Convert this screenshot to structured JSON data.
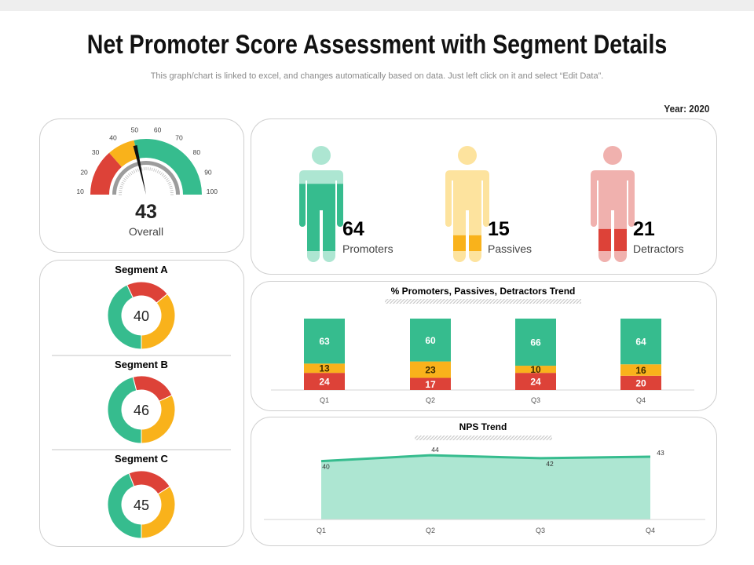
{
  "header": {
    "title": "Net Promoter Score Assessment with Segment Details",
    "subtitle": "This graph/chart is linked to excel, and changes automatically based on data. Just left click on it and select “Edit Data”.",
    "year": "Year: 2020"
  },
  "colors": {
    "green": "#36bc8e",
    "green_light": "#ade6d2",
    "yellow": "#f9b21b",
    "yellow_light": "#fde39e",
    "red": "#dd4238",
    "red_light": "#f0b1ae",
    "gray": "#9c9c9c"
  },
  "gauge": {
    "value": 43,
    "value_text": "43",
    "label": "Overall",
    "scale_labels": [
      "10",
      "20",
      "30",
      "40",
      "50",
      "60",
      "70",
      "80",
      "90",
      "100"
    ],
    "bands": {
      "red_end": 27,
      "yellow_end": 43
    }
  },
  "segments": [
    {
      "title": "Segment A",
      "value": "40",
      "shares": {
        "promoters": 0.43,
        "detractors": 0.21,
        "passives": 0.36
      }
    },
    {
      "title": "Segment B",
      "value": "46",
      "shares": {
        "promoters": 0.46,
        "detractors": 0.22,
        "passives": 0.32
      }
    },
    {
      "title": "Segment C",
      "value": "45",
      "shares": {
        "promoters": 0.44,
        "detractors": 0.22,
        "passives": 0.34
      }
    }
  ],
  "people": [
    {
      "value": "64",
      "label": "Promoters",
      "fill": 64,
      "color": "green"
    },
    {
      "value": "15",
      "label": "Passives",
      "fill": 15,
      "color": "yellow"
    },
    {
      "value": "21",
      "label": "Detractors",
      "fill": 21,
      "color": "red"
    }
  ],
  "chart_data": [
    {
      "type": "bar",
      "stacked": true,
      "title": "% Promoters, Passives, Detractors Trend",
      "categories": [
        "Q1",
        "Q2",
        "Q3",
        "Q4"
      ],
      "series": [
        {
          "key": "detractors",
          "values": [
            24,
            17,
            24,
            20
          ]
        },
        {
          "key": "passives",
          "values": [
            13,
            23,
            10,
            16
          ]
        },
        {
          "key": "promoters",
          "values": [
            63,
            60,
            66,
            64
          ]
        }
      ]
    },
    {
      "type": "area",
      "title": "NPS Trend",
      "categories": [
        "Q1",
        "Q2",
        "Q3",
        "Q4"
      ],
      "values": [
        40,
        44,
        42,
        43
      ],
      "ylim": [
        0,
        100
      ]
    }
  ]
}
